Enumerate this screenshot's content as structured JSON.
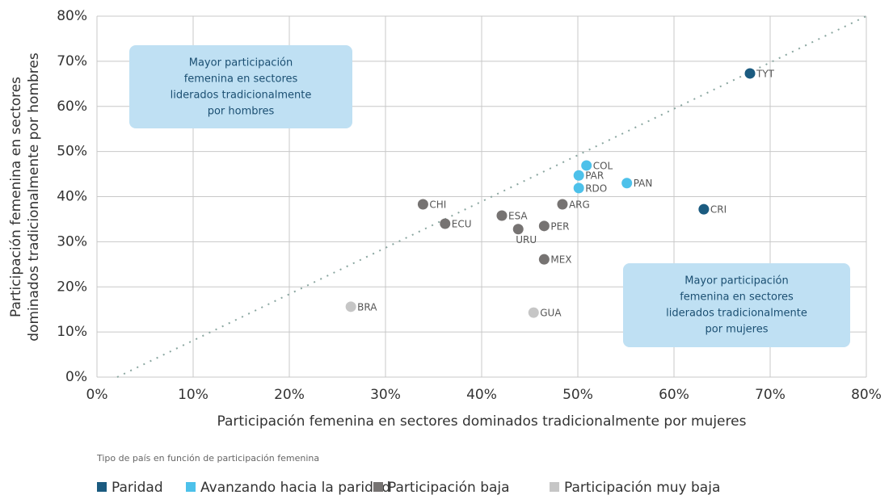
{
  "chart_data": {
    "type": "scatter",
    "xlabel": "Participación femenina en sectores dominados tradicionalmente por mujeres",
    "ylabel": [
      "Participación femenina en sectores",
      "dominados tradicionalmente por hombres"
    ],
    "xlim": [
      0,
      80
    ],
    "ylim": [
      0,
      80
    ],
    "xticks": [
      {
        "value": 0,
        "label": "0%"
      },
      {
        "value": 10,
        "label": "10%"
      },
      {
        "value": 20,
        "label": "20%"
      },
      {
        "value": 30,
        "label": "30%"
      },
      {
        "value": 40,
        "label": "40%"
      },
      {
        "value": 50,
        "label": "50%"
      },
      {
        "value": 60,
        "label": "60%"
      },
      {
        "value": 70,
        "label": "70%"
      },
      {
        "value": 80,
        "label": "80%"
      }
    ],
    "yticks": [
      {
        "value": 0,
        "label": "0%"
      },
      {
        "value": 10,
        "label": "10%"
      },
      {
        "value": 20,
        "label": "20%"
      },
      {
        "value": 30,
        "label": "30%"
      },
      {
        "value": 40,
        "label": "40%"
      },
      {
        "value": 50,
        "label": "50%"
      },
      {
        "value": 60,
        "label": "60%"
      },
      {
        "value": 70,
        "label": "70%"
      },
      {
        "value": 80,
        "label": "80%"
      }
    ],
    "grid": true,
    "annotations": [
      [
        "Mayor participación",
        "femenina en sectores",
        "liderados tradicionalmente",
        "por hombres"
      ],
      [
        "Mayor participación",
        "femenina en sectores",
        "liderados tradicionalmente",
        "por mujeres"
      ]
    ],
    "legend_title": "Tipo de país en función de participación femenina",
    "series": [
      {
        "name": "Paridad",
        "color": "#1b5b80",
        "x": [
          67.9,
          63.1
        ],
        "values": [
          67.3,
          37.2
        ],
        "labels": [
          "TYT",
          "CRI"
        ]
      },
      {
        "name": "Avanzando hacia la paridad",
        "color": "#4dc1ea",
        "x": [
          50.9,
          50.1,
          50.1,
          55.1
        ],
        "values": [
          46.9,
          44.7,
          41.9,
          43.0
        ],
        "labels": [
          "COL",
          "PAR",
          "RDO",
          "PAN"
        ]
      },
      {
        "name": "Participación baja",
        "color": "#767372",
        "x": [
          33.9,
          36.2,
          42.1,
          48.4,
          46.5,
          43.8,
          46.5
        ],
        "values": [
          38.3,
          34.0,
          35.8,
          38.3,
          33.5,
          32.8,
          26.1
        ],
        "labels": [
          "CHI",
          "ECU",
          "ESA",
          "ARG",
          "PER",
          "URU",
          "MEX"
        ]
      },
      {
        "name": "Participación muy baja",
        "color": "#c6c6c6",
        "x": [
          26.4,
          45.4
        ],
        "values": [
          15.6,
          14.3
        ],
        "labels": [
          "BRA",
          "GUA"
        ]
      }
    ]
  }
}
